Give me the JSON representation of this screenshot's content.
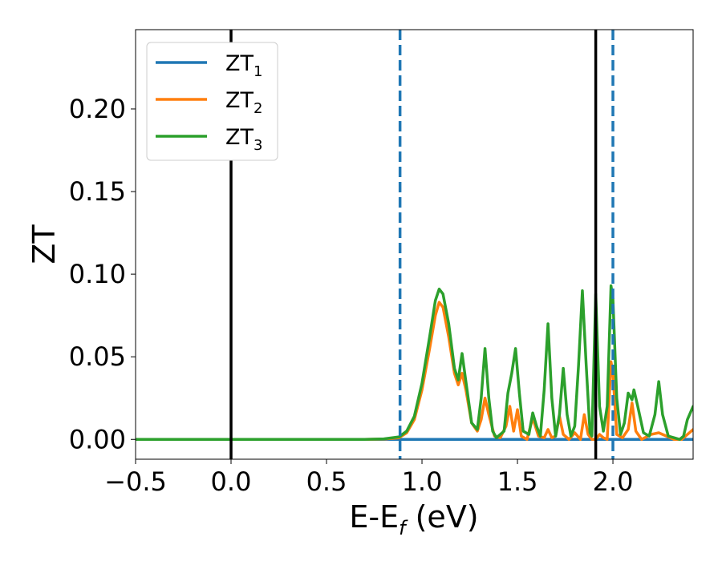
{
  "chart_data": {
    "type": "line",
    "xlabel_main": "E-E",
    "xlabel_sub": "f",
    "xlabel_tail": " (eV)",
    "ylabel": "ZT",
    "xlim": [
      -0.5,
      2.42
    ],
    "ylim": [
      -0.012,
      0.248
    ],
    "x_ticks": [
      -0.5,
      0.0,
      0.5,
      1.0,
      1.5,
      2.0
    ],
    "x_tick_labels": [
      "−0.5",
      "0.0",
      "0.5",
      "1.0",
      "1.5",
      "2.0"
    ],
    "y_ticks": [
      0.0,
      0.05,
      0.1,
      0.15,
      0.2
    ],
    "y_tick_labels": [
      "0.00",
      "0.05",
      "0.10",
      "0.15",
      "0.20"
    ],
    "grid": false,
    "legend": {
      "placement": "top-left",
      "entries": [
        {
          "base": "ZT",
          "sub": "1",
          "color": "#1f77b4"
        },
        {
          "base": "ZT",
          "sub": "2",
          "color": "#ff7f0e"
        },
        {
          "base": "ZT",
          "sub": "3",
          "color": "#2ca02c"
        }
      ]
    },
    "vlines": [
      {
        "x": 0.0,
        "color": "#000000",
        "style": "solid"
      },
      {
        "x": 1.91,
        "color": "#000000",
        "style": "solid"
      },
      {
        "x": 0.885,
        "color": "#1f77b4",
        "style": "dashed"
      },
      {
        "x": 2.0,
        "color": "#1f77b4",
        "style": "dashed"
      }
    ],
    "series": [
      {
        "name": "ZT1",
        "color": "#1f77b4",
        "points": [
          [
            -0.5,
            0.0
          ],
          [
            0.885,
            0.0
          ],
          [
            2.42,
            0.0
          ]
        ]
      },
      {
        "name": "ZT2",
        "color": "#ff7f0e",
        "points": [
          [
            -0.5,
            0.0
          ],
          [
            0.7,
            0.0
          ],
          [
            0.8,
            0.0002
          ],
          [
            0.88,
            0.001
          ],
          [
            0.92,
            0.004
          ],
          [
            0.96,
            0.012
          ],
          [
            1.0,
            0.03
          ],
          [
            1.04,
            0.055
          ],
          [
            1.07,
            0.075
          ],
          [
            1.09,
            0.083
          ],
          [
            1.11,
            0.08
          ],
          [
            1.14,
            0.062
          ],
          [
            1.17,
            0.04
          ],
          [
            1.19,
            0.033
          ],
          [
            1.21,
            0.04
          ],
          [
            1.23,
            0.03
          ],
          [
            1.26,
            0.01
          ],
          [
            1.29,
            0.005
          ],
          [
            1.31,
            0.012
          ],
          [
            1.33,
            0.025
          ],
          [
            1.35,
            0.015
          ],
          [
            1.38,
            0.002
          ],
          [
            1.41,
            0.001
          ],
          [
            1.44,
            0.008
          ],
          [
            1.46,
            0.02
          ],
          [
            1.48,
            0.005
          ],
          [
            1.5,
            0.018
          ],
          [
            1.52,
            0.002
          ],
          [
            1.55,
            0.0
          ],
          [
            1.58,
            0.013
          ],
          [
            1.61,
            0.002
          ],
          [
            1.64,
            0.001
          ],
          [
            1.66,
            0.006
          ],
          [
            1.68,
            0.001
          ],
          [
            1.7,
            0.002
          ],
          [
            1.72,
            0.014
          ],
          [
            1.74,
            0.003
          ],
          [
            1.77,
            0.0
          ],
          [
            1.8,
            0.004
          ],
          [
            1.83,
            0.0
          ],
          [
            1.85,
            0.015
          ],
          [
            1.87,
            0.003
          ],
          [
            1.89,
            0.0
          ],
          [
            1.91,
            0.0
          ],
          [
            1.93,
            0.003
          ],
          [
            1.95,
            0.001
          ],
          [
            1.97,
            0.0
          ],
          [
            1.99,
            0.047
          ],
          [
            2.0,
            0.04
          ],
          [
            2.02,
            0.003
          ],
          [
            2.05,
            0.001
          ],
          [
            2.08,
            0.006
          ],
          [
            2.1,
            0.022
          ],
          [
            2.12,
            0.005
          ],
          [
            2.15,
            0.0
          ],
          [
            2.2,
            0.003
          ],
          [
            2.24,
            0.004
          ],
          [
            2.28,
            0.002
          ],
          [
            2.32,
            0.0
          ],
          [
            2.36,
            0.0
          ],
          [
            2.4,
            0.004
          ],
          [
            2.42,
            0.006
          ]
        ]
      },
      {
        "name": "ZT3",
        "color": "#2ca02c",
        "points": [
          [
            -0.5,
            0.0
          ],
          [
            0.7,
            0.0
          ],
          [
            0.8,
            0.0003
          ],
          [
            0.88,
            0.0015
          ],
          [
            0.92,
            0.005
          ],
          [
            0.96,
            0.014
          ],
          [
            1.0,
            0.034
          ],
          [
            1.04,
            0.062
          ],
          [
            1.07,
            0.084
          ],
          [
            1.09,
            0.091
          ],
          [
            1.11,
            0.088
          ],
          [
            1.14,
            0.07
          ],
          [
            1.17,
            0.043
          ],
          [
            1.19,
            0.036
          ],
          [
            1.21,
            0.052
          ],
          [
            1.23,
            0.035
          ],
          [
            1.26,
            0.01
          ],
          [
            1.29,
            0.006
          ],
          [
            1.31,
            0.025
          ],
          [
            1.33,
            0.055
          ],
          [
            1.35,
            0.025
          ],
          [
            1.37,
            0.005
          ],
          [
            1.39,
            0.001
          ],
          [
            1.41,
            0.003
          ],
          [
            1.43,
            0.005
          ],
          [
            1.45,
            0.028
          ],
          [
            1.47,
            0.04
          ],
          [
            1.49,
            0.055
          ],
          [
            1.51,
            0.028
          ],
          [
            1.53,
            0.005
          ],
          [
            1.56,
            0.003
          ],
          [
            1.58,
            0.016
          ],
          [
            1.6,
            0.008
          ],
          [
            1.62,
            0.002
          ],
          [
            1.64,
            0.03
          ],
          [
            1.66,
            0.07
          ],
          [
            1.68,
            0.025
          ],
          [
            1.7,
            0.002
          ],
          [
            1.72,
            0.015
          ],
          [
            1.74,
            0.043
          ],
          [
            1.76,
            0.015
          ],
          [
            1.78,
            0.002
          ],
          [
            1.8,
            0.008
          ],
          [
            1.82,
            0.045
          ],
          [
            1.84,
            0.09
          ],
          [
            1.86,
            0.045
          ],
          [
            1.88,
            0.004
          ],
          [
            1.89,
            0.002
          ],
          [
            1.91,
            0.088
          ],
          [
            1.93,
            0.02
          ],
          [
            1.95,
            0.005
          ],
          [
            1.97,
            0.02
          ],
          [
            1.99,
            0.093
          ],
          [
            2.0,
            0.085
          ],
          [
            2.02,
            0.025
          ],
          [
            2.04,
            0.003
          ],
          [
            2.06,
            0.01
          ],
          [
            2.08,
            0.028
          ],
          [
            2.1,
            0.024
          ],
          [
            2.11,
            0.03
          ],
          [
            2.13,
            0.02
          ],
          [
            2.16,
            0.004
          ],
          [
            2.19,
            0.002
          ],
          [
            2.22,
            0.015
          ],
          [
            2.24,
            0.035
          ],
          [
            2.26,
            0.015
          ],
          [
            2.29,
            0.002
          ],
          [
            2.32,
            0.001
          ],
          [
            2.35,
            0.0
          ],
          [
            2.37,
            0.002
          ],
          [
            2.39,
            0.012
          ],
          [
            2.42,
            0.02
          ]
        ]
      }
    ]
  }
}
